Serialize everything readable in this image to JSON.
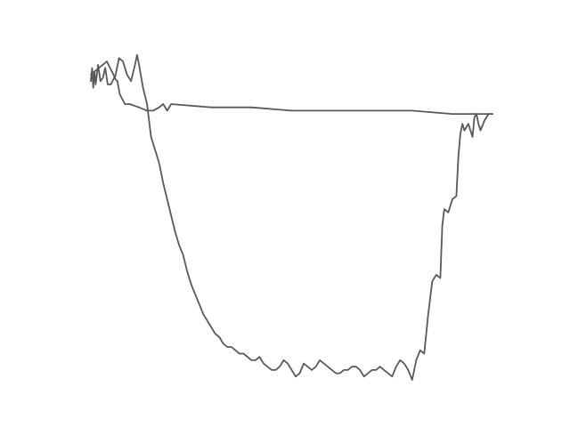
{
  "chart_data": {
    "type": "line",
    "title": "",
    "xlabel": "",
    "ylabel": "",
    "axes_visible": false,
    "grid": false,
    "legend": "none",
    "xlim": [
      0,
      1
    ],
    "ylim": [
      0,
      1
    ],
    "style": {
      "line_color": "#595959"
    },
    "series": [
      {
        "values": [
          [
            0.0,
            0.91
          ],
          [
            0.003,
            0.95
          ],
          [
            0.006,
            0.89
          ],
          [
            0.009,
            0.94
          ],
          [
            0.012,
            0.9
          ],
          [
            0.018,
            0.96
          ],
          [
            0.024,
            0.91
          ],
          [
            0.03,
            0.92
          ],
          [
            0.036,
            0.95
          ],
          [
            0.042,
            0.9
          ],
          [
            0.05,
            0.9
          ],
          [
            0.058,
            0.92
          ],
          [
            0.066,
            0.91
          ],
          [
            0.072,
            0.87
          ],
          [
            0.085,
            0.84
          ],
          [
            0.097,
            0.84
          ],
          [
            0.12,
            0.83
          ],
          [
            0.14,
            0.82
          ],
          [
            0.155,
            0.82
          ],
          [
            0.17,
            0.83
          ],
          [
            0.18,
            0.84
          ],
          [
            0.19,
            0.82
          ],
          [
            0.2,
            0.84
          ],
          [
            0.3,
            0.83
          ],
          [
            0.4,
            0.83
          ],
          [
            0.5,
            0.82
          ],
          [
            0.6,
            0.82
          ],
          [
            0.7,
            0.82
          ],
          [
            0.8,
            0.82
          ],
          [
            0.9,
            0.81
          ],
          [
            0.95,
            0.81
          ],
          [
            1.0,
            0.81
          ]
        ]
      },
      {
        "values": [
          [
            0.0,
            0.93
          ],
          [
            0.02,
            0.95
          ],
          [
            0.04,
            0.97
          ],
          [
            0.06,
            0.92
          ],
          [
            0.07,
            0.98
          ],
          [
            0.08,
            0.97
          ],
          [
            0.09,
            0.93
          ],
          [
            0.1,
            0.91
          ],
          [
            0.11,
            0.96
          ],
          [
            0.115,
            0.99
          ],
          [
            0.12,
            0.96
          ],
          [
            0.13,
            0.89
          ],
          [
            0.14,
            0.84
          ],
          [
            0.15,
            0.74
          ],
          [
            0.16,
            0.7
          ],
          [
            0.17,
            0.66
          ],
          [
            0.18,
            0.6
          ],
          [
            0.19,
            0.55
          ],
          [
            0.2,
            0.5
          ],
          [
            0.21,
            0.45
          ],
          [
            0.22,
            0.41
          ],
          [
            0.23,
            0.38
          ],
          [
            0.24,
            0.33
          ],
          [
            0.25,
            0.29
          ],
          [
            0.26,
            0.26
          ],
          [
            0.27,
            0.23
          ],
          [
            0.28,
            0.2
          ],
          [
            0.29,
            0.18
          ],
          [
            0.3,
            0.16
          ],
          [
            0.31,
            0.14
          ],
          [
            0.32,
            0.13
          ],
          [
            0.33,
            0.11
          ],
          [
            0.34,
            0.1
          ],
          [
            0.35,
            0.1
          ],
          [
            0.36,
            0.09
          ],
          [
            0.37,
            0.08
          ],
          [
            0.38,
            0.08
          ],
          [
            0.39,
            0.07
          ],
          [
            0.4,
            0.06
          ],
          [
            0.41,
            0.06
          ],
          [
            0.42,
            0.07
          ],
          [
            0.43,
            0.05
          ],
          [
            0.44,
            0.04
          ],
          [
            0.45,
            0.03
          ],
          [
            0.46,
            0.03
          ],
          [
            0.47,
            0.04
          ],
          [
            0.48,
            0.06
          ],
          [
            0.49,
            0.05
          ],
          [
            0.5,
            0.03
          ],
          [
            0.51,
            0.01
          ],
          [
            0.52,
            0.02
          ],
          [
            0.53,
            0.05
          ],
          [
            0.54,
            0.04
          ],
          [
            0.55,
            0.03
          ],
          [
            0.56,
            0.04
          ],
          [
            0.57,
            0.06
          ],
          [
            0.58,
            0.05
          ],
          [
            0.59,
            0.04
          ],
          [
            0.6,
            0.03
          ],
          [
            0.61,
            0.02
          ],
          [
            0.62,
            0.02
          ],
          [
            0.63,
            0.03
          ],
          [
            0.64,
            0.03
          ],
          [
            0.65,
            0.04
          ],
          [
            0.66,
            0.04
          ],
          [
            0.67,
            0.03
          ],
          [
            0.68,
            0.01
          ],
          [
            0.69,
            0.02
          ],
          [
            0.7,
            0.03
          ],
          [
            0.71,
            0.03
          ],
          [
            0.72,
            0.04
          ],
          [
            0.73,
            0.03
          ],
          [
            0.74,
            0.02
          ],
          [
            0.75,
            0.01
          ],
          [
            0.76,
            0.04
          ],
          [
            0.77,
            0.06
          ],
          [
            0.78,
            0.05
          ],
          [
            0.79,
            0.03
          ],
          [
            0.8,
            0.0
          ],
          [
            0.81,
            0.06
          ],
          [
            0.82,
            0.09
          ],
          [
            0.83,
            0.08
          ],
          [
            0.84,
            0.2
          ],
          [
            0.85,
            0.3
          ],
          [
            0.86,
            0.32
          ],
          [
            0.87,
            0.31
          ],
          [
            0.875,
            0.47
          ],
          [
            0.88,
            0.52
          ],
          [
            0.89,
            0.51
          ],
          [
            0.9,
            0.55
          ],
          [
            0.91,
            0.56
          ],
          [
            0.915,
            0.68
          ],
          [
            0.92,
            0.75
          ],
          [
            0.925,
            0.78
          ],
          [
            0.93,
            0.76
          ],
          [
            0.94,
            0.78
          ],
          [
            0.95,
            0.74
          ],
          [
            0.955,
            0.8
          ],
          [
            0.96,
            0.81
          ],
          [
            0.965,
            0.78
          ],
          [
            0.97,
            0.76
          ],
          [
            0.98,
            0.79
          ],
          [
            0.99,
            0.81
          ],
          [
            1.0,
            0.81
          ]
        ]
      }
    ]
  }
}
